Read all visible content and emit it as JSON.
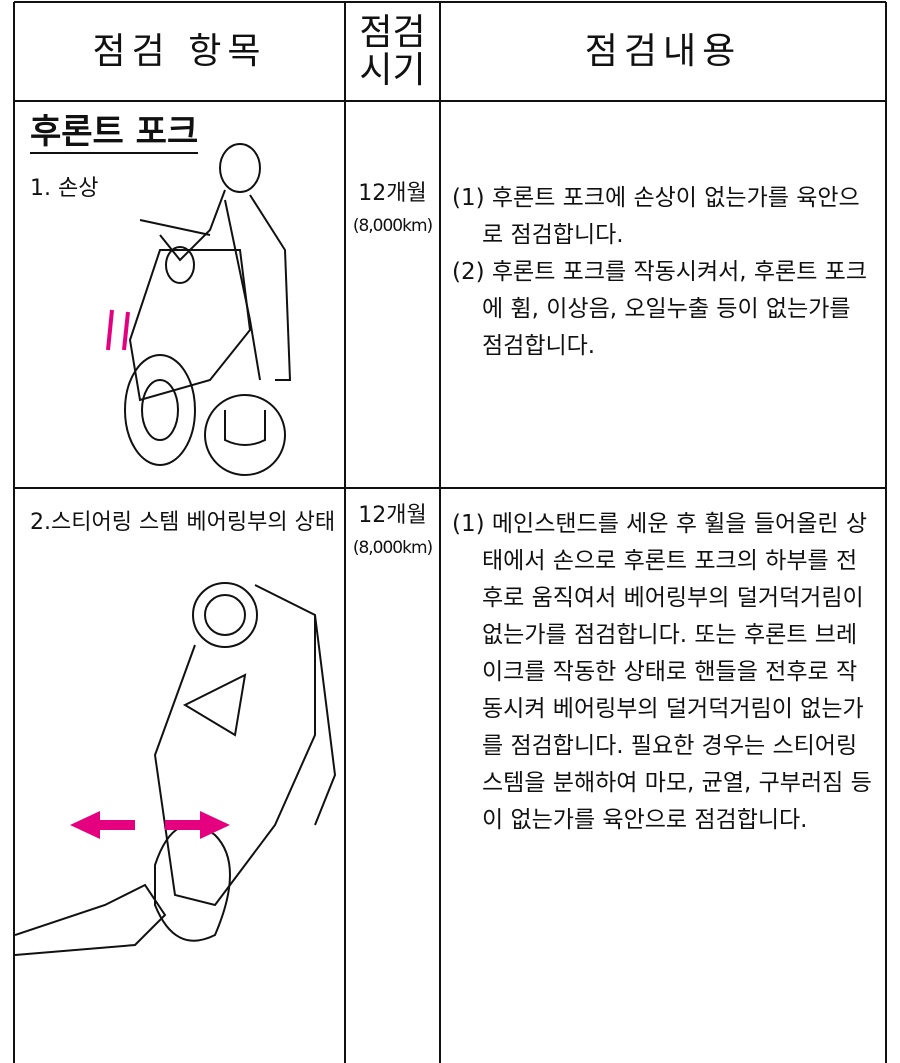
{
  "header": {
    "item": "점검 항목",
    "period": [
      "점검",
      "시기"
    ],
    "content": "점검내용"
  },
  "rows": [
    {
      "section": "후론트 포크",
      "item": "1. 손상",
      "period": "12개월",
      "distance": "(8,000km)",
      "content": [
        "(1) 후론트 포크에 손상이 없는가를 육안으로 점검합니다.",
        "(2) 후론트 포크를 작동시켜서, 후론트 포크에 휨, 이상음, 오일누출 등이 없는가를 점검합니다."
      ]
    },
    {
      "item": "2.스티어링 스템 베어링부의 상태",
      "period": "12개월",
      "distance": "(8,000km)",
      "content": [
        "(1) 메인스탠드를 세운 후 휠을 들어올린 상태에서 손으로 후론트 포크의 하부를 전후로 움직여서 베어링부의 덜거덕거림이 없는가를 점검합니다. 또는 후론트 브레이크를 작동한 상태로 핸들을 전후로 작동시켜 베어링부의 덜거덕거림이 없는가를 점검합니다. 필요한 경우는 스티어링 스템을 분해하여 마모, 균열, 구부러짐 등이 없는가를 육안으로 점검합니다."
      ]
    }
  ]
}
